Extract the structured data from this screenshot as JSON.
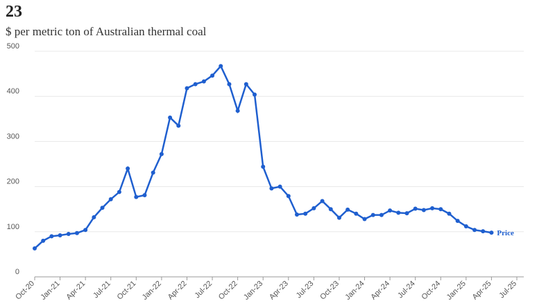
{
  "chart_data": {
    "type": "line",
    "title": "23",
    "subtitle": "$ per metric ton of Australian thermal coal",
    "x": [
      "Oct-20",
      "Nov-20",
      "Dec-20",
      "Jan-21",
      "Feb-21",
      "Mar-21",
      "Apr-21",
      "May-21",
      "Jun-21",
      "Jul-21",
      "Aug-21",
      "Sep-21",
      "Oct-21",
      "Nov-21",
      "Dec-21",
      "Jan-22",
      "Feb-22",
      "Mar-22",
      "Apr-22",
      "May-22",
      "Jun-22",
      "Jul-22",
      "Aug-22",
      "Sep-22",
      "Oct-22",
      "Nov-22",
      "Dec-22",
      "Jan-23",
      "Feb-23",
      "Mar-23",
      "Apr-23",
      "May-23",
      "Jun-23",
      "Jul-23",
      "Aug-23",
      "Sep-23",
      "Oct-23",
      "Nov-23",
      "Dec-23",
      "Jan-24",
      "Feb-24",
      "Mar-24",
      "Apr-24",
      "May-24",
      "Jun-24",
      "Jul-24",
      "Aug-24",
      "Sep-24",
      "Oct-24",
      "Nov-24",
      "Dec-24",
      "Jan-25",
      "Feb-25",
      "Mar-25",
      "Apr-25"
    ],
    "series": [
      {
        "name": "Price",
        "color": "#1f5fcf",
        "values": [
          63,
          80,
          90,
          92,
          95,
          97,
          104,
          132,
          153,
          172,
          188,
          240,
          177,
          181,
          231,
          272,
          353,
          335,
          418,
          427,
          433,
          446,
          467,
          427,
          368,
          427,
          404,
          244,
          196,
          200,
          179,
          138,
          140,
          152,
          168,
          150,
          131,
          149,
          140,
          128,
          137,
          137,
          147,
          142,
          141,
          151,
          148,
          152,
          150,
          140,
          124,
          112,
          104,
          101,
          98
        ]
      }
    ],
    "xlim": [
      "Oct-20",
      "Jul-25"
    ],
    "xticks": [
      "Oct-20",
      "Jan-21",
      "Apr-21",
      "Jul-21",
      "Oct-21",
      "Jan-22",
      "Apr-22",
      "Jul-22",
      "Oct-22",
      "Jan-23",
      "Apr-23",
      "Jul-23",
      "Oct-23",
      "Jan-24",
      "Apr-24",
      "Jul-24",
      "Oct-24",
      "Jan-25",
      "Apr-25",
      "Jul-25"
    ],
    "ylim": [
      0,
      500
    ],
    "yticks": [
      0,
      100,
      200,
      300,
      400,
      500
    ],
    "grid": true
  }
}
